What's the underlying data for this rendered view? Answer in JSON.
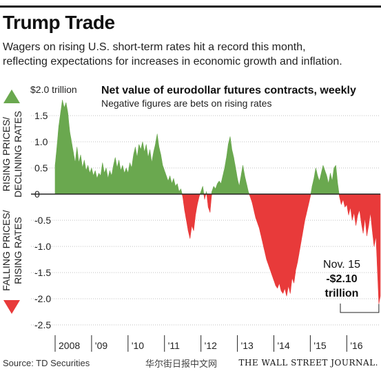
{
  "header": {
    "title": "Trump Trade",
    "subtitle_lines": [
      "Wagers on rising U.S. short-term rates hit a record this month,",
      "reflecting expectations for increases in economic growth and inflation."
    ]
  },
  "footer": {
    "source": "Source: TD Securities",
    "watermark": "华尔街日报中文网",
    "brand": "THE WALL STREET JOURNAL."
  },
  "colors": {
    "positive": "#6aa84f",
    "negative": "#e83a3a",
    "axis": "#222222",
    "grid": "#bfbfbf"
  },
  "chart_data": {
    "type": "area",
    "title": "Net value of eurodollar futures contracts, weekly",
    "subtitle": "Negative figures are bets on rising rates",
    "y_unit_label": "$2.0 trillion",
    "ylim": [
      -2.5,
      2.0
    ],
    "y_ticks": [
      2.0,
      1.5,
      1.0,
      0.5,
      0,
      -0.5,
      -1.0,
      -1.5,
      -2.0,
      -2.5
    ],
    "y_tick_labels": [
      "$2.0 trillion",
      "1.5",
      "1.0",
      "0.5",
      "0",
      "-0.5",
      "-1.0",
      "-1.5",
      "-2.0",
      "-2.5"
    ],
    "xlim": [
      2008.0,
      2016.92
    ],
    "x_ticks": [
      {
        "label": "2008",
        "value": 2008
      },
      {
        "label": "'09",
        "value": 2009
      },
      {
        "label": "'10",
        "value": 2010
      },
      {
        "label": "'11",
        "value": 2011
      },
      {
        "label": "'12",
        "value": 2012
      },
      {
        "label": "'13",
        "value": 2013
      },
      {
        "label": "'14",
        "value": 2014
      },
      {
        "label": "'15",
        "value": 2015
      },
      {
        "label": "'16",
        "value": 2016
      }
    ],
    "side_labels": {
      "positive": "RISING PRICES/ DECLINING RATES",
      "positive_lines": [
        "RISING PRICES/",
        "DECLINING RATES"
      ],
      "negative": "FALLING PRICES/ RISING RATES",
      "negative_lines": [
        "FALLING PRICES/",
        "RISING RATES"
      ]
    },
    "annotation": {
      "lines": [
        "Nov. 15",
        "-$2.10",
        "trillion"
      ],
      "date": "Nov. 15",
      "value": -2.1
    },
    "series": [
      {
        "values": [
          [
            2008.0,
            0.55
          ],
          [
            2008.05,
            0.9
          ],
          [
            2008.1,
            1.3
          ],
          [
            2008.15,
            1.55
          ],
          [
            2008.2,
            1.8
          ],
          [
            2008.25,
            1.65
          ],
          [
            2008.3,
            1.75
          ],
          [
            2008.35,
            1.55
          ],
          [
            2008.4,
            1.2
          ],
          [
            2008.45,
            1.0
          ],
          [
            2008.5,
            0.8
          ],
          [
            2008.55,
            0.6
          ],
          [
            2008.6,
            0.9
          ],
          [
            2008.65,
            0.6
          ],
          [
            2008.7,
            0.75
          ],
          [
            2008.75,
            0.5
          ],
          [
            2008.8,
            0.65
          ],
          [
            2008.85,
            0.45
          ],
          [
            2008.9,
            0.55
          ],
          [
            2008.95,
            0.4
          ],
          [
            2009.0,
            0.5
          ],
          [
            2009.05,
            0.35
          ],
          [
            2009.1,
            0.45
          ],
          [
            2009.15,
            0.3
          ],
          [
            2009.2,
            0.4
          ],
          [
            2009.25,
            0.35
          ],
          [
            2009.3,
            0.6
          ],
          [
            2009.35,
            0.4
          ],
          [
            2009.4,
            0.5
          ],
          [
            2009.45,
            0.3
          ],
          [
            2009.5,
            0.45
          ],
          [
            2009.55,
            0.35
          ],
          [
            2009.6,
            0.55
          ],
          [
            2009.65,
            0.7
          ],
          [
            2009.7,
            0.5
          ],
          [
            2009.75,
            0.65
          ],
          [
            2009.8,
            0.45
          ],
          [
            2009.85,
            0.55
          ],
          [
            2009.9,
            0.4
          ],
          [
            2009.95,
            0.5
          ],
          [
            2010.0,
            0.4
          ],
          [
            2010.05,
            0.6
          ],
          [
            2010.1,
            0.5
          ],
          [
            2010.15,
            0.75
          ],
          [
            2010.2,
            0.9
          ],
          [
            2010.25,
            0.7
          ],
          [
            2010.3,
            0.95
          ],
          [
            2010.35,
            0.85
          ],
          [
            2010.4,
            1.0
          ],
          [
            2010.45,
            0.8
          ],
          [
            2010.5,
            0.95
          ],
          [
            2010.55,
            0.7
          ],
          [
            2010.6,
            0.85
          ],
          [
            2010.65,
            0.6
          ],
          [
            2010.7,
            0.8
          ],
          [
            2010.75,
            0.95
          ],
          [
            2010.8,
            1.15
          ],
          [
            2010.85,
            0.9
          ],
          [
            2010.9,
            0.75
          ],
          [
            2010.95,
            0.55
          ],
          [
            2011.0,
            0.45
          ],
          [
            2011.05,
            0.35
          ],
          [
            2011.1,
            0.25
          ],
          [
            2011.15,
            0.35
          ],
          [
            2011.2,
            0.2
          ],
          [
            2011.25,
            0.3
          ],
          [
            2011.3,
            0.15
          ],
          [
            2011.35,
            0.2
          ],
          [
            2011.4,
            0.05
          ],
          [
            2011.45,
            0.1
          ],
          [
            2011.5,
            -0.05
          ],
          [
            2011.55,
            -0.3
          ],
          [
            2011.6,
            -0.5
          ],
          [
            2011.65,
            -0.7
          ],
          [
            2011.7,
            -0.85
          ],
          [
            2011.75,
            -0.6
          ],
          [
            2011.8,
            -0.7
          ],
          [
            2011.85,
            -0.4
          ],
          [
            2011.9,
            -0.2
          ],
          [
            2011.95,
            -0.05
          ],
          [
            2012.0,
            0.05
          ],
          [
            2012.05,
            0.15
          ],
          [
            2012.1,
            -0.1
          ],
          [
            2012.15,
            0.05
          ],
          [
            2012.2,
            -0.25
          ],
          [
            2012.25,
            -0.35
          ],
          [
            2012.3,
            0.05
          ],
          [
            2012.35,
            0.15
          ],
          [
            2012.4,
            0.1
          ],
          [
            2012.45,
            0.2
          ],
          [
            2012.5,
            0.25
          ],
          [
            2012.55,
            0.2
          ],
          [
            2012.6,
            0.35
          ],
          [
            2012.65,
            0.5
          ],
          [
            2012.7,
            0.7
          ],
          [
            2012.75,
            0.95
          ],
          [
            2012.8,
            1.1
          ],
          [
            2012.85,
            0.85
          ],
          [
            2012.9,
            0.7
          ],
          [
            2012.95,
            0.5
          ],
          [
            2013.0,
            0.3
          ],
          [
            2013.05,
            0.15
          ],
          [
            2013.1,
            0.35
          ],
          [
            2013.15,
            0.55
          ],
          [
            2013.2,
            0.35
          ],
          [
            2013.25,
            0.2
          ],
          [
            2013.3,
            0.05
          ],
          [
            2013.35,
            -0.05
          ],
          [
            2013.4,
            -0.15
          ],
          [
            2013.45,
            -0.3
          ],
          [
            2013.5,
            -0.45
          ],
          [
            2013.55,
            -0.55
          ],
          [
            2013.6,
            -0.65
          ],
          [
            2013.65,
            -0.8
          ],
          [
            2013.7,
            -0.95
          ],
          [
            2013.75,
            -1.1
          ],
          [
            2013.8,
            -1.25
          ],
          [
            2013.85,
            -1.35
          ],
          [
            2013.9,
            -1.45
          ],
          [
            2013.95,
            -1.55
          ],
          [
            2014.0,
            -1.65
          ],
          [
            2014.05,
            -1.75
          ],
          [
            2014.1,
            -1.8
          ],
          [
            2014.15,
            -1.7
          ],
          [
            2014.2,
            -1.85
          ],
          [
            2014.25,
            -1.9
          ],
          [
            2014.3,
            -1.8
          ],
          [
            2014.35,
            -1.95
          ],
          [
            2014.4,
            -1.75
          ],
          [
            2014.45,
            -1.9
          ],
          [
            2014.5,
            -1.6
          ],
          [
            2014.55,
            -1.7
          ],
          [
            2014.6,
            -1.45
          ],
          [
            2014.65,
            -1.3
          ],
          [
            2014.7,
            -1.1
          ],
          [
            2014.75,
            -0.9
          ],
          [
            2014.8,
            -0.7
          ],
          [
            2014.85,
            -0.5
          ],
          [
            2014.9,
            -0.35
          ],
          [
            2014.95,
            -0.2
          ],
          [
            2015.0,
            -0.05
          ],
          [
            2015.05,
            0.15
          ],
          [
            2015.1,
            0.3
          ],
          [
            2015.15,
            0.5
          ],
          [
            2015.2,
            0.35
          ],
          [
            2015.25,
            0.25
          ],
          [
            2015.3,
            0.4
          ],
          [
            2015.35,
            0.55
          ],
          [
            2015.4,
            0.45
          ],
          [
            2015.45,
            0.35
          ],
          [
            2015.5,
            0.2
          ],
          [
            2015.55,
            0.4
          ],
          [
            2015.6,
            0.25
          ],
          [
            2015.65,
            0.5
          ],
          [
            2015.7,
            0.55
          ],
          [
            2015.75,
            0.2
          ],
          [
            2015.8,
            -0.05
          ],
          [
            2015.85,
            -0.2
          ],
          [
            2015.9,
            -0.1
          ],
          [
            2015.95,
            -0.25
          ],
          [
            2016.0,
            -0.2
          ],
          [
            2016.05,
            -0.4
          ],
          [
            2016.1,
            -0.25
          ],
          [
            2016.15,
            -0.5
          ],
          [
            2016.2,
            -0.35
          ],
          [
            2016.25,
            -0.6
          ],
          [
            2016.3,
            -0.4
          ],
          [
            2016.35,
            -0.3
          ],
          [
            2016.4,
            -0.55
          ],
          [
            2016.45,
            -0.75
          ],
          [
            2016.5,
            -0.45
          ],
          [
            2016.55,
            -0.8
          ],
          [
            2016.6,
            -0.6
          ],
          [
            2016.65,
            -0.35
          ],
          [
            2016.7,
            -0.7
          ],
          [
            2016.75,
            -1.0
          ],
          [
            2016.8,
            -0.8
          ],
          [
            2016.85,
            -1.6
          ],
          [
            2016.88,
            -2.1
          ],
          [
            2016.92,
            -1.95
          ]
        ]
      }
    ]
  }
}
